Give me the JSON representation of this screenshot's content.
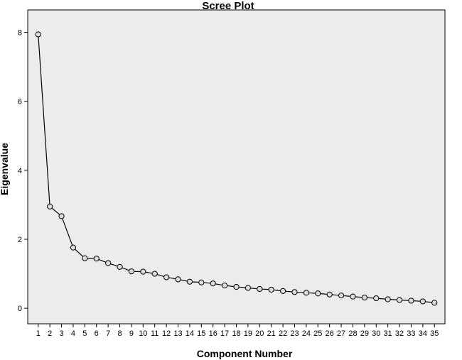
{
  "chart_data": {
    "type": "line",
    "title": "Scree Plot",
    "xlabel": "Component Number",
    "ylabel": "Eigenvalue",
    "x": [
      1,
      2,
      3,
      4,
      5,
      6,
      7,
      8,
      9,
      10,
      11,
      12,
      13,
      14,
      15,
      16,
      17,
      18,
      19,
      20,
      21,
      22,
      23,
      24,
      25,
      26,
      27,
      28,
      29,
      30,
      31,
      32,
      33,
      34,
      35
    ],
    "values": [
      7.94,
      2.95,
      2.67,
      1.76,
      1.45,
      1.44,
      1.31,
      1.2,
      1.07,
      1.06,
      1.0,
      0.9,
      0.84,
      0.77,
      0.75,
      0.72,
      0.66,
      0.62,
      0.59,
      0.56,
      0.54,
      0.5,
      0.47,
      0.45,
      0.43,
      0.4,
      0.37,
      0.34,
      0.31,
      0.29,
      0.26,
      0.24,
      0.22,
      0.2,
      0.16
    ],
    "xlim": [
      0.1,
      35.9
    ],
    "ylim": [
      -0.45,
      8.65
    ],
    "yticks": [
      0,
      2,
      4,
      6,
      8
    ],
    "xticks": [
      1,
      2,
      3,
      4,
      5,
      6,
      7,
      8,
      9,
      10,
      11,
      12,
      13,
      14,
      15,
      16,
      17,
      18,
      19,
      20,
      21,
      22,
      23,
      24,
      25,
      26,
      27,
      28,
      29,
      30,
      31,
      32,
      33,
      34,
      35
    ],
    "grid": false,
    "colors": {
      "plot_background": "#ececec",
      "line": "#000000",
      "marker_fill": "#dcdcdc"
    }
  }
}
